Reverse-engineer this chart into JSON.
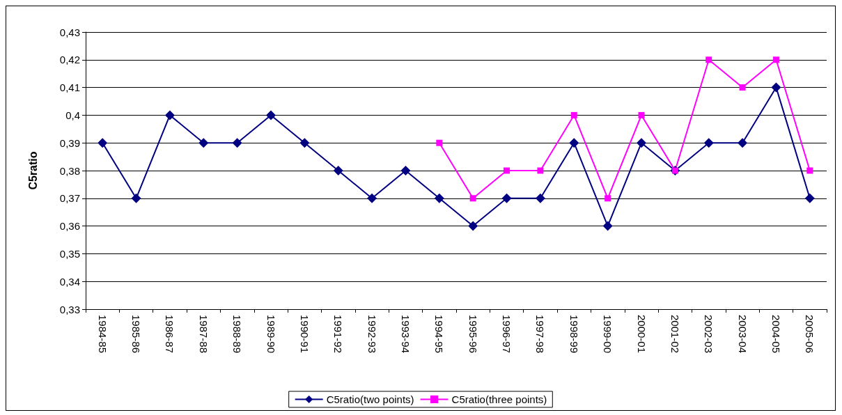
{
  "chart_data": {
    "type": "line",
    "ylabel": "C5ratio",
    "categories": [
      "1984-85",
      "1985-86",
      "1986-87",
      "1987-88",
      "1988-89",
      "1989-90",
      "1990-91",
      "1991-92",
      "1992-93",
      "1993-94",
      "1994-95",
      "1995-96",
      "1996-97",
      "1997-98",
      "1998-99",
      "1999-00",
      "2000-01",
      "2001-02",
      "2002-03",
      "2003-04",
      "2004-05",
      "2005-06"
    ],
    "series": [
      {
        "name": "C5ratio(two points)",
        "color": "#000080",
        "marker": "diamond",
        "values": [
          0.39,
          0.37,
          0.4,
          0.39,
          0.39,
          0.4,
          0.39,
          0.38,
          0.37,
          0.38,
          0.37,
          0.36,
          0.37,
          0.37,
          0.39,
          0.36,
          0.39,
          0.38,
          0.39,
          0.39,
          0.41,
          0.37
        ]
      },
      {
        "name": "C5ratio(three points)",
        "color": "#ff00ff",
        "marker": "square",
        "values": [
          null,
          null,
          null,
          null,
          null,
          null,
          null,
          null,
          null,
          null,
          0.39,
          0.37,
          0.38,
          0.38,
          0.4,
          0.37,
          0.4,
          0.38,
          0.42,
          0.41,
          0.42,
          0.38
        ]
      }
    ],
    "ylim": [
      0.33,
      0.43
    ],
    "yticks": [
      {
        "value": 0.33,
        "label": "0,33"
      },
      {
        "value": 0.34,
        "label": "0,34"
      },
      {
        "value": 0.35,
        "label": "0,35"
      },
      {
        "value": 0.36,
        "label": "0,36"
      },
      {
        "value": 0.37,
        "label": "0,37"
      },
      {
        "value": 0.38,
        "label": "0,38"
      },
      {
        "value": 0.39,
        "label": "0,39"
      },
      {
        "value": 0.4,
        "label": "0,4"
      },
      {
        "value": 0.41,
        "label": "0,41"
      },
      {
        "value": 0.42,
        "label": "0,42"
      },
      {
        "value": 0.43,
        "label": "0,43"
      }
    ],
    "grid": "y",
    "legend": "bottom",
    "line_style": "solid"
  }
}
